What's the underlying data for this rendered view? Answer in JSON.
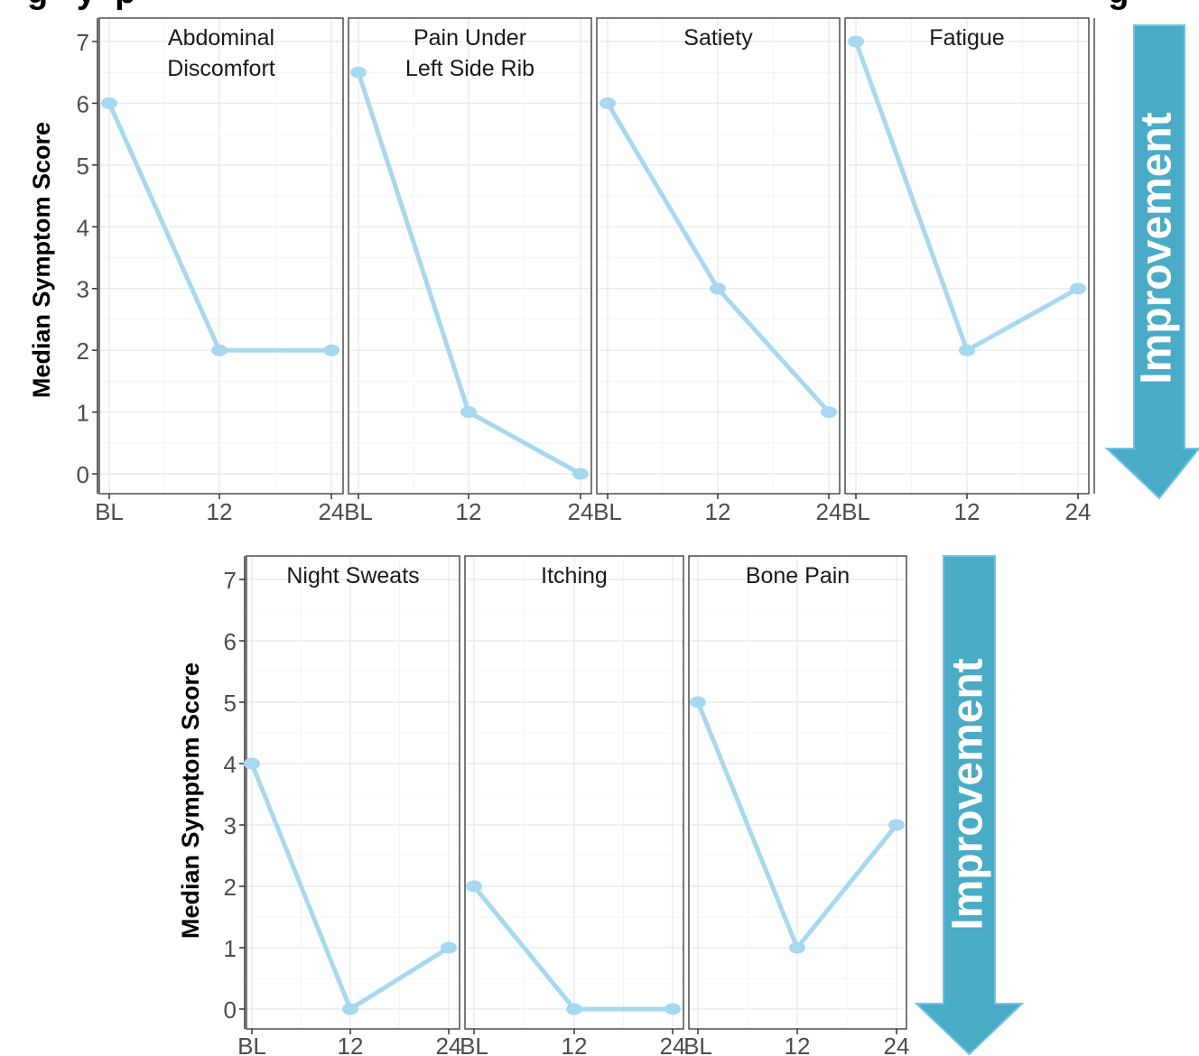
{
  "figure": {
    "title_fragment": "g   y  p                                                                                                      g",
    "ylabel": "Median Symptom Score",
    "arrow_label": "Improvement",
    "colors": {
      "line": "#a8d8f0",
      "point": "#a8d8f0",
      "arrow": "#4aabc6",
      "arrow_edge": "#70c3e4",
      "grid": "#ebebeb",
      "panel_border": "#333333"
    }
  },
  "chart_data": [
    {
      "type": "line",
      "categories": [
        "BL",
        "12",
        "24"
      ],
      "ylabel": "Median Symptom Score",
      "ylim": [
        0,
        7
      ],
      "yticks": [
        0,
        1,
        2,
        3,
        4,
        5,
        6,
        7
      ],
      "grid": true,
      "panels": [
        {
          "title": [
            "Abdominal",
            "Discomfort"
          ],
          "values": [
            6,
            2,
            2
          ]
        },
        {
          "title": [
            "Pain Under",
            "Left Side Rib"
          ],
          "values": [
            6.5,
            1,
            0
          ]
        },
        {
          "title": [
            "Satiety"
          ],
          "values": [
            6,
            3,
            1
          ]
        },
        {
          "title": [
            "Fatigue"
          ],
          "values": [
            7,
            2,
            3
          ]
        }
      ]
    },
    {
      "type": "line",
      "categories": [
        "BL",
        "12",
        "24"
      ],
      "ylabel": "Median Symptom Score",
      "ylim": [
        0,
        7
      ],
      "yticks": [
        0,
        1,
        2,
        3,
        4,
        5,
        6,
        7
      ],
      "grid": true,
      "panels": [
        {
          "title": [
            "Night Sweats"
          ],
          "values": [
            4,
            0,
            1
          ]
        },
        {
          "title": [
            "Itching"
          ],
          "values": [
            2,
            0,
            0
          ]
        },
        {
          "title": [
            "Bone Pain"
          ],
          "values": [
            5,
            1,
            3
          ]
        }
      ]
    }
  ]
}
